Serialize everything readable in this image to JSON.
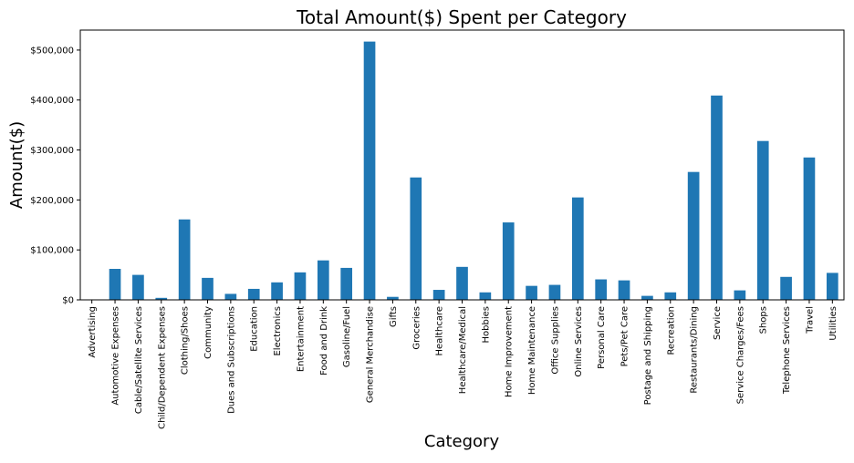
{
  "chart_data": {
    "type": "bar",
    "title": "Total Amount($) Spent per Category",
    "xlabel": "Category",
    "ylabel": "Amount($)",
    "ylim": [
      0,
      540000
    ],
    "yticks": [
      0,
      100000,
      200000,
      300000,
      400000,
      500000
    ],
    "ytick_labels": [
      "$0",
      "$100,000",
      "$200,000",
      "$300,000",
      "$400,000",
      "$500,000"
    ],
    "grid": false,
    "legend": "none",
    "bar_color": "#1f77b4",
    "categories": [
      "Advertising",
      "Automotive Expenses",
      "Cable/Satellite Services",
      "Child/Dependent Expenses",
      "Clothing/Shoes",
      "Community",
      "Dues and Subscriptions",
      "Education",
      "Electronics",
      "Entertainment",
      "Food and Drink",
      "Gasoline/Fuel",
      "General Merchandise",
      "Gifts",
      "Groceries",
      "Healthcare",
      "Healthcare/Medical",
      "Hobbies",
      "Home Improvement",
      "Home Maintenance",
      "Office Supplies",
      "Online Services",
      "Personal Care",
      "Pets/Pet Care",
      "Postage and Shipping",
      "Recreation",
      "Restaurants/Dining",
      "Service",
      "Service Charges/Fees",
      "Shops",
      "Telephone Services",
      "Travel",
      "Utilities"
    ],
    "values": [
      0,
      62000,
      50000,
      4000,
      161000,
      44000,
      12000,
      22000,
      35000,
      55000,
      79000,
      64000,
      517000,
      6000,
      245000,
      20000,
      66000,
      15000,
      155000,
      28000,
      30000,
      205000,
      41000,
      39000,
      8000,
      15000,
      256000,
      409000,
      19000,
      318000,
      46000,
      285000,
      54000
    ]
  }
}
